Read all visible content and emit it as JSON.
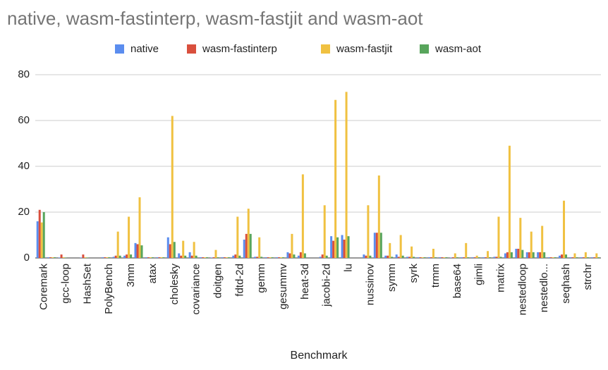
{
  "chart_data": {
    "type": "bar",
    "title": "native, wasm-fastinterp, wasm-fastjit and wasm-aot",
    "x_label": "Benchmark",
    "categories": [
      "Coremark",
      null,
      "gcc-loop",
      null,
      "HashSet",
      null,
      "PolyBench",
      null,
      "3mm",
      null,
      "atax",
      null,
      "cholesky",
      null,
      "covariance",
      null,
      "doitgen",
      null,
      "fdtd-2d",
      null,
      "gemm",
      null,
      "gesummv",
      null,
      "heat-3d",
      null,
      "jacobi-2d",
      null,
      "lu",
      null,
      "nussinov",
      null,
      "symm",
      null,
      "syrk",
      null,
      "trmm",
      null,
      "base64",
      null,
      "gimli",
      null,
      "matrix",
      null,
      "nestedloop",
      null,
      "nestedlo...",
      null,
      "seqhash",
      null,
      "strchr",
      null
    ],
    "series": [
      {
        "name": "native",
        "color": "#5b8def",
        "values": [
          16,
          0.3,
          0.2,
          0,
          0.2,
          0,
          0.3,
          0.5,
          1,
          6.5,
          0.3,
          0.3,
          9,
          2,
          2.5,
          0.3,
          0.2,
          0.3,
          1,
          8,
          0.5,
          0.3,
          0.3,
          2.5,
          1,
          0,
          0.5,
          9.5,
          10,
          0,
          1.5,
          11,
          1,
          1.5,
          0.5,
          0.3,
          0.3,
          0.3,
          0.2,
          0.3,
          0.3,
          0.3,
          0.5,
          2,
          4,
          2.5,
          2.5,
          0.3,
          1,
          0.3,
          0.3,
          0.3
        ]
      },
      {
        "name": "wasm-fastinterp",
        "color": "#d94f3d",
        "values": [
          21,
          0.3,
          1.5,
          0,
          1.5,
          0,
          0.3,
          1,
          1.5,
          6,
          0.3,
          0.3,
          6,
          1,
          1,
          0.3,
          0.3,
          0.3,
          1.5,
          10.5,
          0.5,
          0.3,
          0.3,
          2,
          2.5,
          0,
          1.5,
          7.5,
          8,
          0,
          1,
          11,
          1,
          0.5,
          0.5,
          0.3,
          0.3,
          0.3,
          0.3,
          0.3,
          0.3,
          0.3,
          0.5,
          2.5,
          4,
          2.5,
          2.5,
          0.3,
          1.5,
          0.3,
          0.3,
          0.3
        ]
      },
      {
        "name": "wasm-fastjit",
        "color": "#f0c141",
        "values": [
          15.5,
          0.3,
          0.3,
          0,
          0.3,
          0,
          0.3,
          11.5,
          18,
          26.5,
          0.3,
          0.3,
          62,
          7.5,
          7,
          0.3,
          3.5,
          0.3,
          18,
          21.5,
          9,
          0.3,
          0.3,
          10.5,
          36.5,
          0,
          23,
          69,
          72.5,
          0,
          23,
          36,
          6.5,
          10,
          5,
          0.3,
          4,
          0.3,
          2,
          6.5,
          1,
          3,
          18,
          49,
          17.5,
          11.5,
          14,
          0.3,
          25,
          2,
          2.5,
          2
        ]
      },
      {
        "name": "wasm-aot",
        "color": "#58a55c",
        "values": [
          20,
          0.3,
          0.2,
          0,
          0.2,
          0,
          0.3,
          1,
          1.5,
          5.5,
          0.3,
          0.3,
          7,
          1,
          1,
          0.3,
          0.3,
          0.3,
          1,
          10.5,
          0.5,
          0.3,
          0.3,
          1.5,
          2,
          0,
          1,
          9,
          9.5,
          0,
          1,
          11,
          0.5,
          1,
          0.5,
          0.3,
          0.3,
          0.3,
          0.3,
          0.3,
          0.3,
          0.3,
          0.5,
          2.5,
          3.5,
          2.5,
          2.5,
          0.3,
          1.5,
          0.3,
          0.3,
          0.3
        ]
      }
    ],
    "ylim": [
      0,
      80
    ],
    "yticks": [
      0,
      20,
      40,
      60,
      80
    ],
    "grid": true,
    "legend": "top"
  }
}
